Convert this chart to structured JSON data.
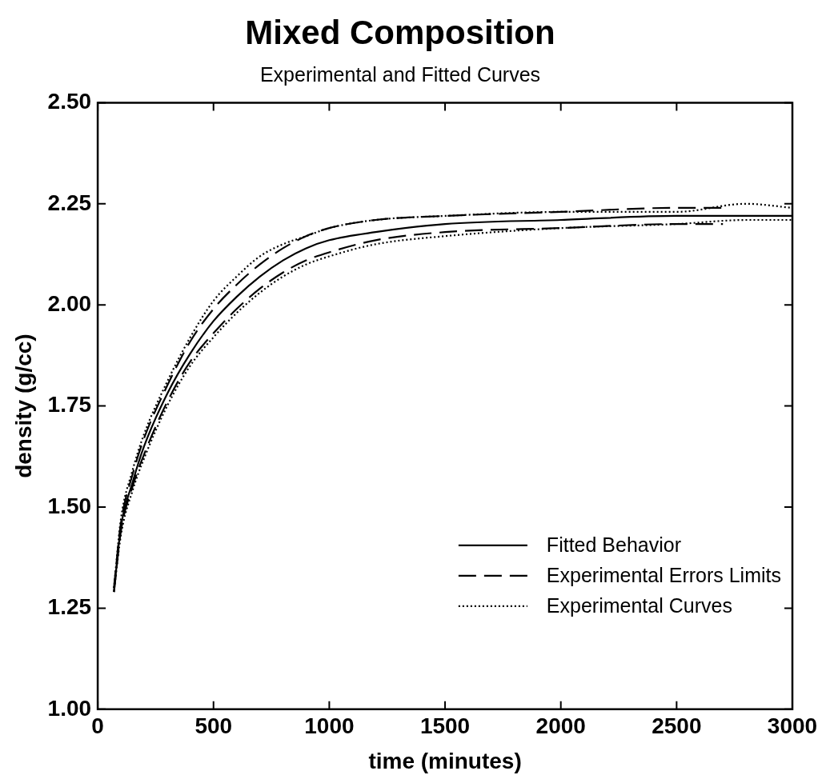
{
  "chart_data": {
    "type": "line",
    "title": "Mixed Composition",
    "subtitle": "Experimental and Fitted Curves",
    "xlabel": "time (minutes)",
    "ylabel": "density (g/cc)",
    "xlim": [
      0,
      3000
    ],
    "xticks": [
      0,
      500,
      1000,
      1500,
      2000,
      2500,
      3000
    ],
    "ylim": [
      1,
      2.5
    ],
    "yticks": [
      {
        "value": 1,
        "label": "1.00"
      },
      {
        "value": 1.25,
        "label": "1.25"
      },
      {
        "value": 1.5,
        "label": "1.50"
      },
      {
        "value": 1.75,
        "label": "1.75"
      },
      {
        "value": 2,
        "label": "2.00"
      },
      {
        "value": 2.25,
        "label": "2.25"
      },
      {
        "value": 2.5,
        "label": "2.50"
      }
    ],
    "grid": false,
    "legend": "bottom right",
    "marker": "none",
    "series": [
      {
        "name": "Fitted Behavior",
        "color": "#000000",
        "line_style": "solid",
        "x": [
          70,
          100,
          150,
          200,
          300,
          400,
          500,
          600,
          700,
          800,
          900,
          1000,
          1200,
          1500,
          2000,
          2500,
          3000
        ],
        "values": [
          1.29,
          1.45,
          1.56,
          1.65,
          1.78,
          1.88,
          1.96,
          2.02,
          2.07,
          2.11,
          2.14,
          2.16,
          2.18,
          2.2,
          2.21,
          2.22,
          2.22
        ]
      },
      {
        "name": "Experimental Errors Limits",
        "color": "#000000",
        "line_style": "dashed",
        "x": [
          70,
          100,
          150,
          200,
          300,
          400,
          500,
          600,
          700,
          800,
          900,
          1000,
          1200,
          1500,
          2000,
          2500,
          2700
        ],
        "values": [
          1.3,
          1.46,
          1.58,
          1.67,
          1.8,
          1.91,
          1.99,
          2.05,
          2.1,
          2.14,
          2.17,
          2.19,
          2.21,
          2.22,
          2.23,
          2.24,
          2.24
        ]
      },
      {
        "color": "#000000",
        "line_style": "dashed",
        "x": [
          70,
          100,
          150,
          200,
          300,
          400,
          500,
          600,
          700,
          800,
          900,
          1000,
          1200,
          1500,
          2000,
          2500,
          2700
        ],
        "values": [
          1.29,
          1.44,
          1.55,
          1.63,
          1.76,
          1.86,
          1.93,
          1.99,
          2.04,
          2.08,
          2.11,
          2.13,
          2.16,
          2.18,
          2.19,
          2.2,
          2.2
        ]
      },
      {
        "name": "Experimental Curves",
        "color": "#000000",
        "line_style": "dotted",
        "x": [
          70,
          100,
          150,
          200,
          300,
          400,
          500,
          600,
          700,
          800,
          900,
          1000,
          1200,
          1500,
          2000,
          2500,
          2800,
          3000
        ],
        "values": [
          1.3,
          1.47,
          1.59,
          1.68,
          1.81,
          1.92,
          2.01,
          2.07,
          2.12,
          2.15,
          2.17,
          2.19,
          2.21,
          2.22,
          2.23,
          2.23,
          2.25,
          2.24
        ]
      },
      {
        "color": "#000000",
        "line_style": "dotted",
        "x": [
          70,
          100,
          150,
          200,
          300,
          400,
          500,
          600,
          700,
          800,
          900,
          1000,
          1200,
          1500,
          2000,
          2500,
          2800,
          3000
        ],
        "values": [
          1.29,
          1.43,
          1.54,
          1.62,
          1.75,
          1.85,
          1.92,
          1.98,
          2.03,
          2.07,
          2.1,
          2.12,
          2.15,
          2.17,
          2.19,
          2.2,
          2.21,
          2.21
        ]
      }
    ]
  }
}
